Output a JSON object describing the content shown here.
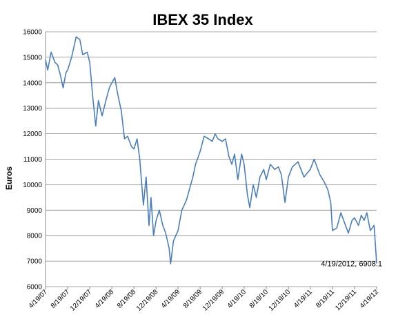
{
  "chart_data": {
    "type": "line",
    "title": "IBEX 35 Index",
    "xlabel": "",
    "ylabel": "Euros",
    "ylim": [
      6000,
      16000
    ],
    "yticks": [
      6000,
      7000,
      8000,
      9000,
      10000,
      11000,
      12000,
      13000,
      14000,
      15000,
      16000
    ],
    "xlim": [
      "2007-04-19",
      "2012-04-19"
    ],
    "xticks": [
      "4/19/07",
      "8/19/07",
      "12/19/07",
      "4/19/08",
      "8/19/08",
      "12/19/08",
      "4/19/09",
      "8/19/09",
      "12/19/09",
      "4/19/10",
      "8/19/10",
      "12/19/10",
      "4/19/11",
      "8/19/11",
      "12/19/11",
      "4/19/12"
    ],
    "grid": true,
    "legend": "none",
    "color": "#4a7ebb",
    "series": [
      {
        "x": [
          "2007-04-19",
          "2007-05-01",
          "2007-05-20",
          "2007-06-10",
          "2007-06-25",
          "2007-07-10",
          "2007-07-25",
          "2007-08-10",
          "2007-08-19",
          "2007-09-10",
          "2007-10-05",
          "2007-10-25",
          "2007-11-10",
          "2007-12-05",
          "2007-12-19",
          "2008-01-05",
          "2008-01-21",
          "2008-02-05",
          "2008-02-25",
          "2008-03-17",
          "2008-04-05",
          "2008-04-19",
          "2008-05-05",
          "2008-05-20",
          "2008-06-10",
          "2008-06-28",
          "2008-07-15",
          "2008-08-05",
          "2008-08-19",
          "2008-09-05",
          "2008-09-20",
          "2008-10-01",
          "2008-10-10",
          "2008-10-25",
          "2008-11-10",
          "2008-11-21",
          "2008-12-05",
          "2008-12-19",
          "2009-01-06",
          "2009-01-25",
          "2009-02-10",
          "2009-03-01",
          "2009-03-09",
          "2009-03-25",
          "2009-04-19",
          "2009-05-10",
          "2009-06-05",
          "2009-07-10",
          "2009-07-25",
          "2009-08-19",
          "2009-09-10",
          "2009-10-05",
          "2009-10-25",
          "2009-11-10",
          "2009-11-25",
          "2009-12-19",
          "2010-01-06",
          "2010-01-25",
          "2010-02-10",
          "2010-02-25",
          "2010-03-15",
          "2010-04-05",
          "2010-04-19",
          "2010-05-07",
          "2010-05-20",
          "2010-06-08",
          "2010-06-25",
          "2010-07-15",
          "2010-08-05",
          "2010-08-19",
          "2010-09-10",
          "2010-10-05",
          "2010-10-25",
          "2010-11-10",
          "2010-11-30",
          "2010-12-19",
          "2011-01-10",
          "2011-02-10",
          "2011-03-15",
          "2011-04-19",
          "2011-05-10",
          "2011-06-10",
          "2011-07-05",
          "2011-07-25",
          "2011-08-10",
          "2011-08-19",
          "2011-09-12",
          "2011-10-05",
          "2011-10-25",
          "2011-11-15",
          "2011-12-05",
          "2011-12-19",
          "2012-01-10",
          "2012-01-25",
          "2012-02-10",
          "2012-02-25",
          "2012-03-15",
          "2012-04-05",
          "2012-04-19"
        ],
        "y": [
          14900,
          14500,
          15200,
          14800,
          14700,
          14300,
          13800,
          14400,
          14500,
          15000,
          15800,
          15700,
          15100,
          15200,
          14800,
          13400,
          12300,
          13300,
          12700,
          13300,
          13800,
          14000,
          14200,
          13600,
          12900,
          11800,
          11900,
          11500,
          11400,
          11800,
          11000,
          10000,
          9200,
          10300,
          8400,
          9500,
          8000,
          8600,
          9000,
          8400,
          8100,
          7500,
          6900,
          7800,
          8200,
          9000,
          9400,
          10300,
          10800,
          11300,
          11900,
          11800,
          11700,
          12000,
          11800,
          11700,
          11800,
          11100,
          10800,
          11200,
          10200,
          11200,
          10800,
          9600,
          9100,
          10000,
          9500,
          10300,
          10600,
          10200,
          10800,
          10600,
          10700,
          10400,
          9300,
          10300,
          10700,
          10900,
          10300,
          10600,
          11000,
          10400,
          10100,
          9800,
          9300,
          8200,
          8300,
          8900,
          8500,
          8100,
          8600,
          8700,
          8400,
          8800,
          8600,
          8900,
          8200,
          8400,
          6908.1
        ]
      }
    ],
    "annotations": [
      {
        "text": "4/19/2012, 6908.1",
        "x": "2012-04-19",
        "y": 6908.1
      }
    ]
  }
}
